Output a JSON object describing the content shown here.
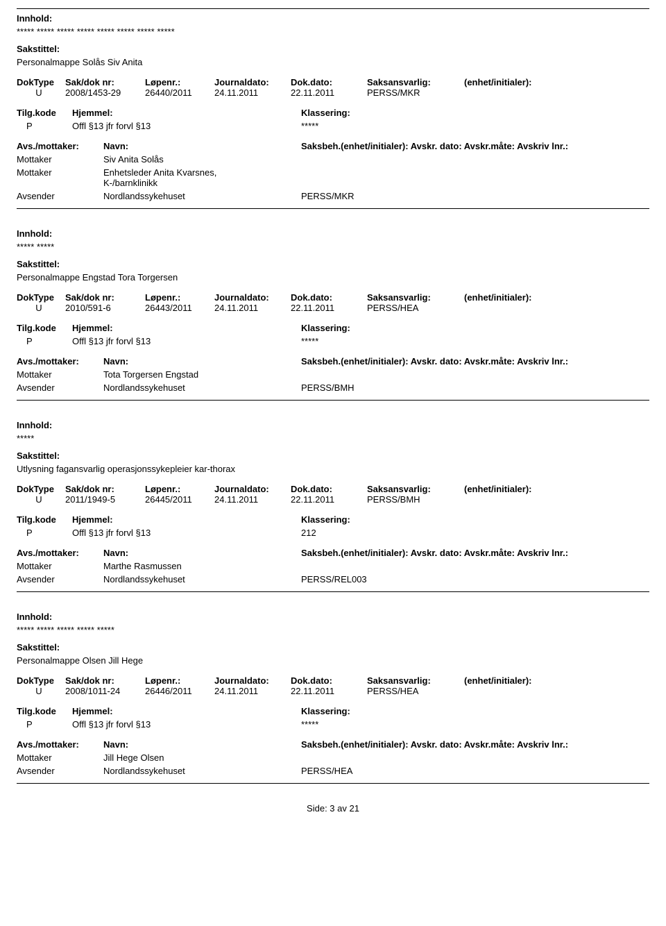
{
  "labels": {
    "innhold": "Innhold:",
    "sakstittel": "Sakstittel:",
    "doktype": "DokType",
    "sakdok": "Sak/dok nr:",
    "lopenr": "Løpenr.:",
    "jdato": "Journaldato:",
    "ddato": "Dok.dato:",
    "ansvarlig": "Saksansvarlig:",
    "enhet": "(enhet/initialer):",
    "tilgkode": "Tilg.kode",
    "hjemmel": "Hjemmel:",
    "klassering": "Klassering:",
    "avsmottaker": "Avs./mottaker:",
    "navn": "Navn:",
    "saksbeh_line": "Saksbeh.(enhet/initialer): Avskr. dato:  Avskr.måte:  Avskriv lnr.:"
  },
  "records": [
    {
      "innhold": "***** ***** *****  ***** ***** ***** ***** *****",
      "sakstittel": "Personalmappe Solås Siv Anita",
      "doktype": "U",
      "sakdok": "2008/1453-29",
      "lopenr": "26440/2011",
      "jdato": "24.11.2011",
      "ddato": "22.11.2011",
      "ansvarlig": "PERSS/MKR",
      "tilgkode": "P",
      "hjemmel": "Offl §13 jfr forvl §13",
      "klassering": "*****",
      "parties": [
        {
          "role": "Mottaker",
          "name": "Siv Anita Solås",
          "code": ""
        },
        {
          "role": "Mottaker",
          "name": "Enhetsleder Anita Kvarsnes,\nK-/barnklinikk",
          "code": ""
        },
        {
          "role": "Avsender",
          "name": "Nordlandssykehuset",
          "code": "PERSS/MKR"
        }
      ]
    },
    {
      "innhold": "***** *****",
      "sakstittel": "Personalmappe Engstad Tora Torgersen",
      "doktype": "U",
      "sakdok": "2010/591-6",
      "lopenr": "26443/2011",
      "jdato": "24.11.2011",
      "ddato": "22.11.2011",
      "ansvarlig": "PERSS/HEA",
      "tilgkode": "P",
      "hjemmel": "Offl §13 jfr forvl §13",
      "klassering": "*****",
      "parties": [
        {
          "role": "Mottaker",
          "name": "Tota Torgersen Engstad",
          "code": ""
        },
        {
          "role": "Avsender",
          "name": "Nordlandssykehuset",
          "code": "PERSS/BMH"
        }
      ]
    },
    {
      "innhold": "*****",
      "sakstittel": "Utlysning fagansvarlig operasjonssykepleier kar-thorax",
      "doktype": "U",
      "sakdok": "2011/1949-5",
      "lopenr": "26445/2011",
      "jdato": "24.11.2011",
      "ddato": "22.11.2011",
      "ansvarlig": "PERSS/BMH",
      "tilgkode": "P",
      "hjemmel": "Offl §13 jfr forvl §13",
      "klassering": "212",
      "parties": [
        {
          "role": "Mottaker",
          "name": "Marthe Rasmussen",
          "code": ""
        },
        {
          "role": "Avsender",
          "name": "Nordlandssykehuset",
          "code": "PERSS/REL003"
        }
      ]
    },
    {
      "innhold": "***** ***** ***** ***** *****",
      "sakstittel": "Personalmappe Olsen Jill Hege",
      "doktype": "U",
      "sakdok": "2008/1011-24",
      "lopenr": "26446/2011",
      "jdato": "24.11.2011",
      "ddato": "22.11.2011",
      "ansvarlig": "PERSS/HEA",
      "tilgkode": "P",
      "hjemmel": "Offl §13 jfr forvl §13",
      "klassering": "*****",
      "parties": [
        {
          "role": "Mottaker",
          "name": "Jill Hege Olsen",
          "code": ""
        },
        {
          "role": "Avsender",
          "name": "Nordlandssykehuset",
          "code": "PERSS/HEA"
        }
      ]
    }
  ],
  "footer": "Side:  3  av  21"
}
